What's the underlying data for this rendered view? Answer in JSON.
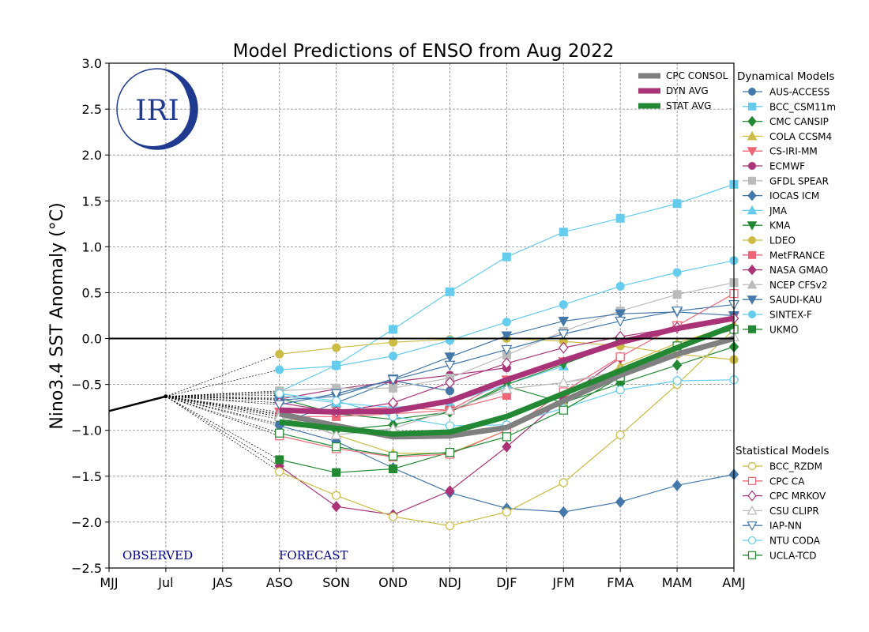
{
  "chart_data": {
    "type": "line",
    "title": "Model Predictions of ENSO from Aug 2022",
    "ylabel": "Nino3.4 SST Anomaly (°C)",
    "xlabel": "",
    "categories": [
      "MJJ",
      "Jul",
      "JAS",
      "ASO",
      "SON",
      "OND",
      "NDJ",
      "DJF",
      "JFM",
      "FMA",
      "MAM",
      "AMJ"
    ],
    "ylim": [
      -2.5,
      3.0
    ],
    "yticks": [
      -2.5,
      -2.0,
      -1.5,
      -1.0,
      -0.5,
      0.0,
      0.5,
      1.0,
      1.5,
      2.0,
      2.5,
      3.0
    ],
    "grid": true,
    "annotations": {
      "observed": "OBSERVED",
      "forecast": "FORECAST"
    },
    "observed": {
      "x": [
        "MJJ",
        "Jul"
      ],
      "values": [
        -0.79,
        -0.63
      ]
    },
    "forecast_start": "ASO",
    "averages": [
      {
        "name": "CPC CONSOL",
        "color": "#808080",
        "values": [
          -0.82,
          -0.95,
          -1.07,
          -1.06,
          -0.97,
          -0.68,
          -0.4,
          -0.17,
          0.0
        ]
      },
      {
        "name": "DYN AVG",
        "color": "#aa3377",
        "values": [
          -0.78,
          -0.8,
          -0.79,
          -0.68,
          -0.45,
          -0.24,
          -0.04,
          0.11,
          0.22
        ]
      },
      {
        "name": "STAT AVG",
        "color": "#228833",
        "values": [
          -0.91,
          -0.98,
          -1.04,
          -1.02,
          -0.85,
          -0.6,
          -0.35,
          -0.1,
          0.14
        ]
      }
    ],
    "legend_dynamical_title": "Dynamical Models",
    "legend_statistical_title": "Statistical Models",
    "dynamical": [
      {
        "name": "AUS-ACCESS",
        "color": "#4477aa",
        "marker": "circle",
        "values": [
          -0.93,
          -0.7,
          -0.46,
          -0.57,
          null,
          null,
          null,
          null,
          null
        ]
      },
      {
        "name": "BCC_CSM11m",
        "color": "#66ccee",
        "marker": "square",
        "values": [
          -0.58,
          -0.29,
          0.1,
          0.51,
          0.89,
          1.16,
          1.31,
          1.47,
          1.68
        ]
      },
      {
        "name": "CMC CANSIP",
        "color": "#228833",
        "marker": "diamond",
        "values": [
          -0.88,
          -1.0,
          -0.94,
          -0.8,
          -0.52,
          -0.7,
          -0.49,
          -0.29,
          -0.09
        ]
      },
      {
        "name": "COLA CCSM4",
        "color": "#ccbb44",
        "marker": "triangle-up",
        "values": [
          -0.83,
          -1.05,
          -1.25,
          -1.25,
          -1.0,
          -0.7,
          -0.3,
          -0.05,
          0.15
        ]
      },
      {
        "name": "CS-IRI-MM",
        "color": "#ee6677",
        "marker": "triangle-down",
        "values": [
          -0.8,
          -0.78,
          -0.75,
          -0.78,
          -0.45,
          -0.25,
          -0.02,
          0.14,
          0.24
        ]
      },
      {
        "name": "ECMWF",
        "color": "#aa3377",
        "marker": "circle",
        "values": [
          -0.66,
          -0.55,
          -0.47,
          -0.4,
          -0.32,
          null,
          null,
          null,
          null
        ]
      },
      {
        "name": "GFDL SPEAR",
        "color": "#bbbbbb",
        "marker": "square",
        "values": [
          -0.57,
          -0.54,
          -0.54,
          -0.43,
          -0.18,
          0.08,
          0.3,
          0.48,
          0.61
        ]
      },
      {
        "name": "IOCAS ICM",
        "color": "#4477aa",
        "marker": "diamond",
        "values": [
          -0.95,
          -1.12,
          -1.41,
          -1.68,
          -1.85,
          -1.89,
          -1.78,
          -1.6,
          -1.48
        ]
      },
      {
        "name": "JMA",
        "color": "#66ccee",
        "marker": "triangle-up",
        "values": [
          -0.62,
          -0.7,
          -0.75,
          -0.7,
          -0.5,
          -0.3,
          null,
          null,
          null
        ]
      },
      {
        "name": "KMA",
        "color": "#228833",
        "marker": "triangle-down",
        "values": [
          -0.65,
          -0.82,
          -0.88,
          -0.8,
          -0.5,
          -0.28,
          -0.05,
          null,
          null
        ]
      },
      {
        "name": "LDEO",
        "color": "#ccbb44",
        "marker": "circle",
        "values": [
          -0.17,
          -0.1,
          -0.04,
          -0.01,
          0.0,
          -0.03,
          -0.08,
          -0.17,
          -0.23
        ]
      },
      {
        "name": "MetFRANCE",
        "color": "#ee6677",
        "marker": "square",
        "values": [
          -0.85,
          -0.85,
          -0.82,
          -0.78,
          -0.62,
          null,
          null,
          null,
          null
        ]
      },
      {
        "name": "NASA GMAO",
        "color": "#aa3377",
        "marker": "diamond",
        "values": [
          -1.39,
          -1.83,
          -1.92,
          -1.66,
          -1.18,
          -0.65,
          -0.21,
          null,
          null
        ]
      },
      {
        "name": "NCEP CFSv2",
        "color": "#bbbbbb",
        "marker": "triangle-up",
        "values": [
          -0.82,
          -1.05,
          -0.98,
          -0.78,
          -0.55,
          -0.48,
          -0.38,
          null,
          null
        ]
      },
      {
        "name": "SAUDI-KAU",
        "color": "#4477aa",
        "marker": "triangle-down",
        "values": [
          -0.67,
          -0.63,
          -0.44,
          -0.2,
          0.03,
          0.19,
          0.27,
          0.29,
          0.25
        ]
      },
      {
        "name": "SINTEX-F",
        "color": "#66ccee",
        "marker": "circle",
        "values": [
          -0.34,
          -0.3,
          -0.19,
          -0.02,
          0.18,
          0.37,
          0.57,
          0.72,
          0.85
        ]
      },
      {
        "name": "UKMO",
        "color": "#228833",
        "marker": "square",
        "values": [
          -1.32,
          -1.46,
          -1.42,
          -1.24,
          null,
          null,
          null,
          null,
          null
        ]
      }
    ],
    "statistical": [
      {
        "name": "BCC_RZDM",
        "color": "#ccbb44",
        "marker": "circle",
        "values": [
          -1.45,
          -1.71,
          -1.94,
          -2.04,
          -1.89,
          -1.57,
          -1.05,
          -0.5,
          0.1
        ]
      },
      {
        "name": "CPC CA",
        "color": "#ee6677",
        "marker": "square",
        "values": [
          -1.06,
          -1.2,
          -1.29,
          -1.26,
          -1.0,
          -0.58,
          -0.2,
          0.14,
          0.49
        ]
      },
      {
        "name": "CPC MRKOV",
        "color": "#aa3377",
        "marker": "diamond",
        "values": [
          -0.7,
          -0.8,
          -0.7,
          -0.48,
          -0.27,
          -0.1,
          0.02,
          0.12,
          0.22
        ]
      },
      {
        "name": "CSU CLIPR",
        "color": "#bbbbbb",
        "marker": "triangle-up",
        "values": [
          -0.85,
          -1.05,
          -0.98,
          -0.78,
          -0.55,
          -0.48,
          -0.35,
          -0.15,
          0.02
        ]
      },
      {
        "name": "IAP-NN",
        "color": "#4477aa",
        "marker": "triangle-down",
        "values": [
          -0.72,
          -0.6,
          -0.45,
          -0.29,
          -0.12,
          0.05,
          0.19,
          0.3,
          0.37
        ]
      },
      {
        "name": "NTU CODA",
        "color": "#66ccee",
        "marker": "circle",
        "values": [
          -0.6,
          -0.68,
          -0.85,
          -0.95,
          -0.94,
          -0.76,
          -0.56,
          -0.46,
          -0.45
        ]
      },
      {
        "name": "UCLA-TCD",
        "color": "#228833",
        "marker": "square",
        "values": [
          -1.03,
          -1.18,
          -1.28,
          -1.24,
          -1.07,
          -0.78,
          -0.42,
          -0.08,
          0.1
        ]
      }
    ]
  },
  "logo": {
    "text": "IRI",
    "color": "#1f3a8f"
  }
}
